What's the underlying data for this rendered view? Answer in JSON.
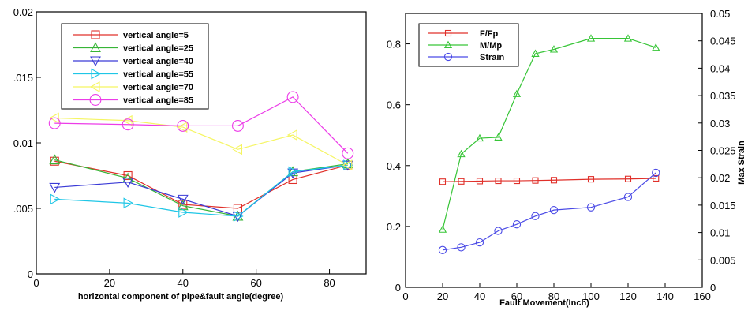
{
  "chart_data": [
    {
      "type": "line",
      "xlabel": "horizontal component of pipe&fault angle(degree)",
      "ylabel": "",
      "xlim": [
        0,
        90
      ],
      "ylim": [
        0,
        0.02
      ],
      "x_ticks": [
        "0",
        "20",
        "40",
        "60",
        "80"
      ],
      "y_ticks": [
        "0",
        ".005",
        "0.01",
        ".015",
        "0.02"
      ],
      "legend_position": "top-left",
      "grid": false,
      "x": [
        5,
        25,
        40,
        55,
        70,
        85
      ],
      "series": [
        {
          "name": "vertical angle=5",
          "color": "#e0302a",
          "marker": "square",
          "values": [
            0.0086,
            0.0075,
            0.0053,
            0.005,
            0.0072,
            0.0083
          ]
        },
        {
          "name": "vertical angle=25",
          "color": "#37b537",
          "marker": "triangle-up",
          "values": [
            0.0087,
            0.0073,
            0.0052,
            0.0044,
            0.0078,
            0.0084
          ]
        },
        {
          "name": "vertical angle=40",
          "color": "#3a3ad6",
          "marker": "triangle-down",
          "values": [
            0.0066,
            0.007,
            0.0057,
            0.0044,
            0.0077,
            0.0083
          ]
        },
        {
          "name": "vertical angle=55",
          "color": "#1fc6e6",
          "marker": "triangle-right",
          "values": [
            0.0057,
            0.0054,
            0.0047,
            0.0044,
            0.0078,
            0.0083
          ]
        },
        {
          "name": "vertical angle=70",
          "color": "#f5f562",
          "marker": "triangle-left",
          "values": [
            0.0119,
            0.0117,
            0.0112,
            0.0095,
            0.0106,
            0.0083
          ]
        },
        {
          "name": "vertical angle=85",
          "color": "#ec3ce8",
          "marker": "circle",
          "values": [
            0.0115,
            0.0114,
            0.0113,
            0.0113,
            0.0135,
            0.0092
          ]
        }
      ]
    },
    {
      "type": "line",
      "xlabel": "Fault Movement(Inch)",
      "ylabel_right": "Max Strain",
      "xlim": [
        0,
        160
      ],
      "ylim": [
        0,
        0.9
      ],
      "ylim_right": [
        0,
        0.05
      ],
      "x_ticks": [
        "0",
        "20",
        "40",
        "60",
        "80",
        "100",
        "120",
        "140",
        "160"
      ],
      "y_ticks": [
        "0",
        "0.2",
        "0.4",
        "0.6",
        "0.8"
      ],
      "y_ticks_right": [
        "0",
        "0.005",
        "0.01",
        "0.015",
        "0.02",
        "0.025",
        "0.03",
        "0.035",
        "0.04",
        "0.045",
        "0.05"
      ],
      "legend_position": "top-left",
      "grid": false,
      "series": [
        {
          "name": "F/Fp",
          "color": "#e0302a",
          "marker": "square",
          "axis": "left",
          "x": [
            20,
            30,
            40,
            50,
            60,
            70,
            80,
            100,
            120,
            135
          ],
          "values": [
            0.347,
            0.348,
            0.349,
            0.35,
            0.35,
            0.351,
            0.352,
            0.355,
            0.356,
            0.358
          ]
        },
        {
          "name": "M/Mp",
          "color": "#37c537",
          "marker": "triangle-up",
          "axis": "left",
          "x": [
            20,
            30,
            40,
            50,
            60,
            70,
            80,
            100,
            120,
            135
          ],
          "values": [
            0.19,
            0.438,
            0.49,
            0.493,
            0.636,
            0.768,
            0.782,
            0.818,
            0.818,
            0.788
          ]
        },
        {
          "name": "Strain",
          "color": "#4a4ae6",
          "marker": "circle",
          "axis": "right",
          "x": [
            20,
            30,
            40,
            50,
            60,
            70,
            80,
            100,
            120,
            135
          ],
          "values": [
            0.0068,
            0.0073,
            0.0082,
            0.0103,
            0.0115,
            0.013,
            0.0141,
            0.0146,
            0.0165,
            0.0209
          ]
        }
      ]
    }
  ]
}
